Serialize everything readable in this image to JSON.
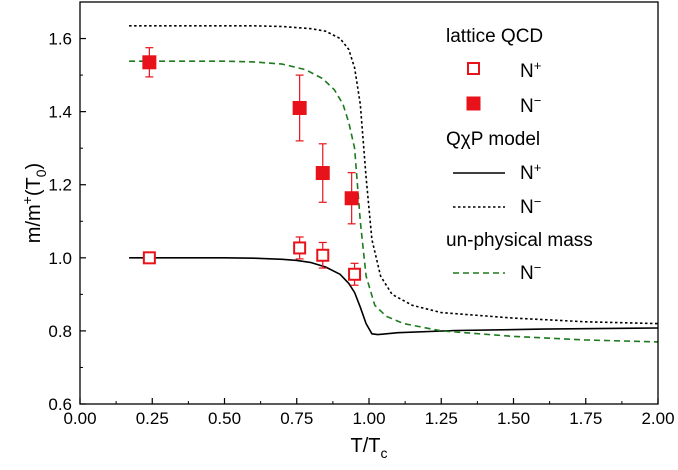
{
  "chart_data": {
    "type": "scatter",
    "title": "",
    "xlabel": {
      "main": "T/T",
      "sub": "c"
    },
    "ylabel": {
      "main": "m/m",
      "sup": "+",
      "mid": "(T",
      "sub": "0",
      "end": ")"
    },
    "xlim": [
      0.0,
      2.0
    ],
    "ylim": [
      0.6,
      1.7
    ],
    "xticks": [
      "0.00",
      "0.25",
      "0.50",
      "0.75",
      "1.00",
      "1.25",
      "1.50",
      "1.75",
      "2.00"
    ],
    "yticks": [
      "0.6",
      "0.8",
      "1.0",
      "1.2",
      "1.4",
      "1.6"
    ],
    "grid": false,
    "legend_position": "top-right",
    "colors": {
      "lattice": "#e8131a",
      "model": "#000000",
      "unphysical": "#1d7a1d"
    },
    "legend": {
      "lattice_header": "lattice QCD",
      "model_header": "QχP model",
      "unphysical_header": "un-physical mass",
      "items": [
        {
          "label": "N",
          "sup": "+"
        },
        {
          "label": "N",
          "sup": "−"
        },
        {
          "label": "N",
          "sup": "+"
        },
        {
          "label": "N",
          "sup": "−"
        },
        {
          "label": "N",
          "sup": "−"
        }
      ]
    },
    "scatter_series": [
      {
        "name": "lattice QCD N+",
        "marker": "open-square",
        "points": [
          {
            "x": 0.24,
            "y": 1.0,
            "err": 0.01
          },
          {
            "x": 0.76,
            "y": 1.027,
            "err": 0.03
          },
          {
            "x": 0.84,
            "y": 1.007,
            "err": 0.035
          },
          {
            "x": 0.95,
            "y": 0.955,
            "err": 0.03
          }
        ]
      },
      {
        "name": "lattice QCD N-",
        "marker": "filled-square",
        "points": [
          {
            "x": 0.24,
            "y": 1.535,
            "err": 0.04
          },
          {
            "x": 0.76,
            "y": 1.41,
            "err": 0.09
          },
          {
            "x": 0.84,
            "y": 1.232,
            "err": 0.08
          },
          {
            "x": 0.94,
            "y": 1.163,
            "err": 0.07
          }
        ]
      }
    ],
    "line_series": [
      {
        "name": "QχP model N+",
        "style": "solid",
        "points": [
          [
            0.17,
            1.0
          ],
          [
            0.5,
            1.0
          ],
          [
            0.6,
            0.999
          ],
          [
            0.7,
            0.996
          ],
          [
            0.75,
            0.993
          ],
          [
            0.8,
            0.987
          ],
          [
            0.85,
            0.975
          ],
          [
            0.9,
            0.955
          ],
          [
            0.93,
            0.93
          ],
          [
            0.95,
            0.905
          ],
          [
            0.97,
            0.865
          ],
          [
            0.99,
            0.82
          ],
          [
            1.01,
            0.792
          ],
          [
            1.03,
            0.79
          ],
          [
            1.1,
            0.795
          ],
          [
            1.3,
            0.801
          ],
          [
            1.6,
            0.805
          ],
          [
            2.0,
            0.808
          ]
        ]
      },
      {
        "name": "QχP model N-",
        "style": "dotted",
        "points": [
          [
            0.17,
            1.635
          ],
          [
            0.6,
            1.635
          ],
          [
            0.7,
            1.633
          ],
          [
            0.8,
            1.627
          ],
          [
            0.85,
            1.62
          ],
          [
            0.9,
            1.6
          ],
          [
            0.93,
            1.57
          ],
          [
            0.95,
            1.52
          ],
          [
            0.97,
            1.42
          ],
          [
            0.99,
            1.22
          ],
          [
            1.01,
            1.05
          ],
          [
            1.04,
            0.95
          ],
          [
            1.08,
            0.9
          ],
          [
            1.15,
            0.87
          ],
          [
            1.25,
            0.85
          ],
          [
            1.5,
            0.835
          ],
          [
            1.75,
            0.825
          ],
          [
            2.0,
            0.82
          ]
        ]
      },
      {
        "name": "un-physical mass N-",
        "style": "dashed",
        "points": [
          [
            0.17,
            1.538
          ],
          [
            0.5,
            1.538
          ],
          [
            0.6,
            1.536
          ],
          [
            0.7,
            1.53
          ],
          [
            0.78,
            1.515
          ],
          [
            0.84,
            1.49
          ],
          [
            0.88,
            1.46
          ],
          [
            0.91,
            1.42
          ],
          [
            0.93,
            1.37
          ],
          [
            0.95,
            1.3
          ],
          [
            0.97,
            1.1
          ],
          [
            0.99,
            0.95
          ],
          [
            1.02,
            0.87
          ],
          [
            1.06,
            0.84
          ],
          [
            1.12,
            0.82
          ],
          [
            1.25,
            0.8
          ],
          [
            1.5,
            0.785
          ],
          [
            1.75,
            0.775
          ],
          [
            2.0,
            0.77
          ]
        ]
      }
    ]
  }
}
